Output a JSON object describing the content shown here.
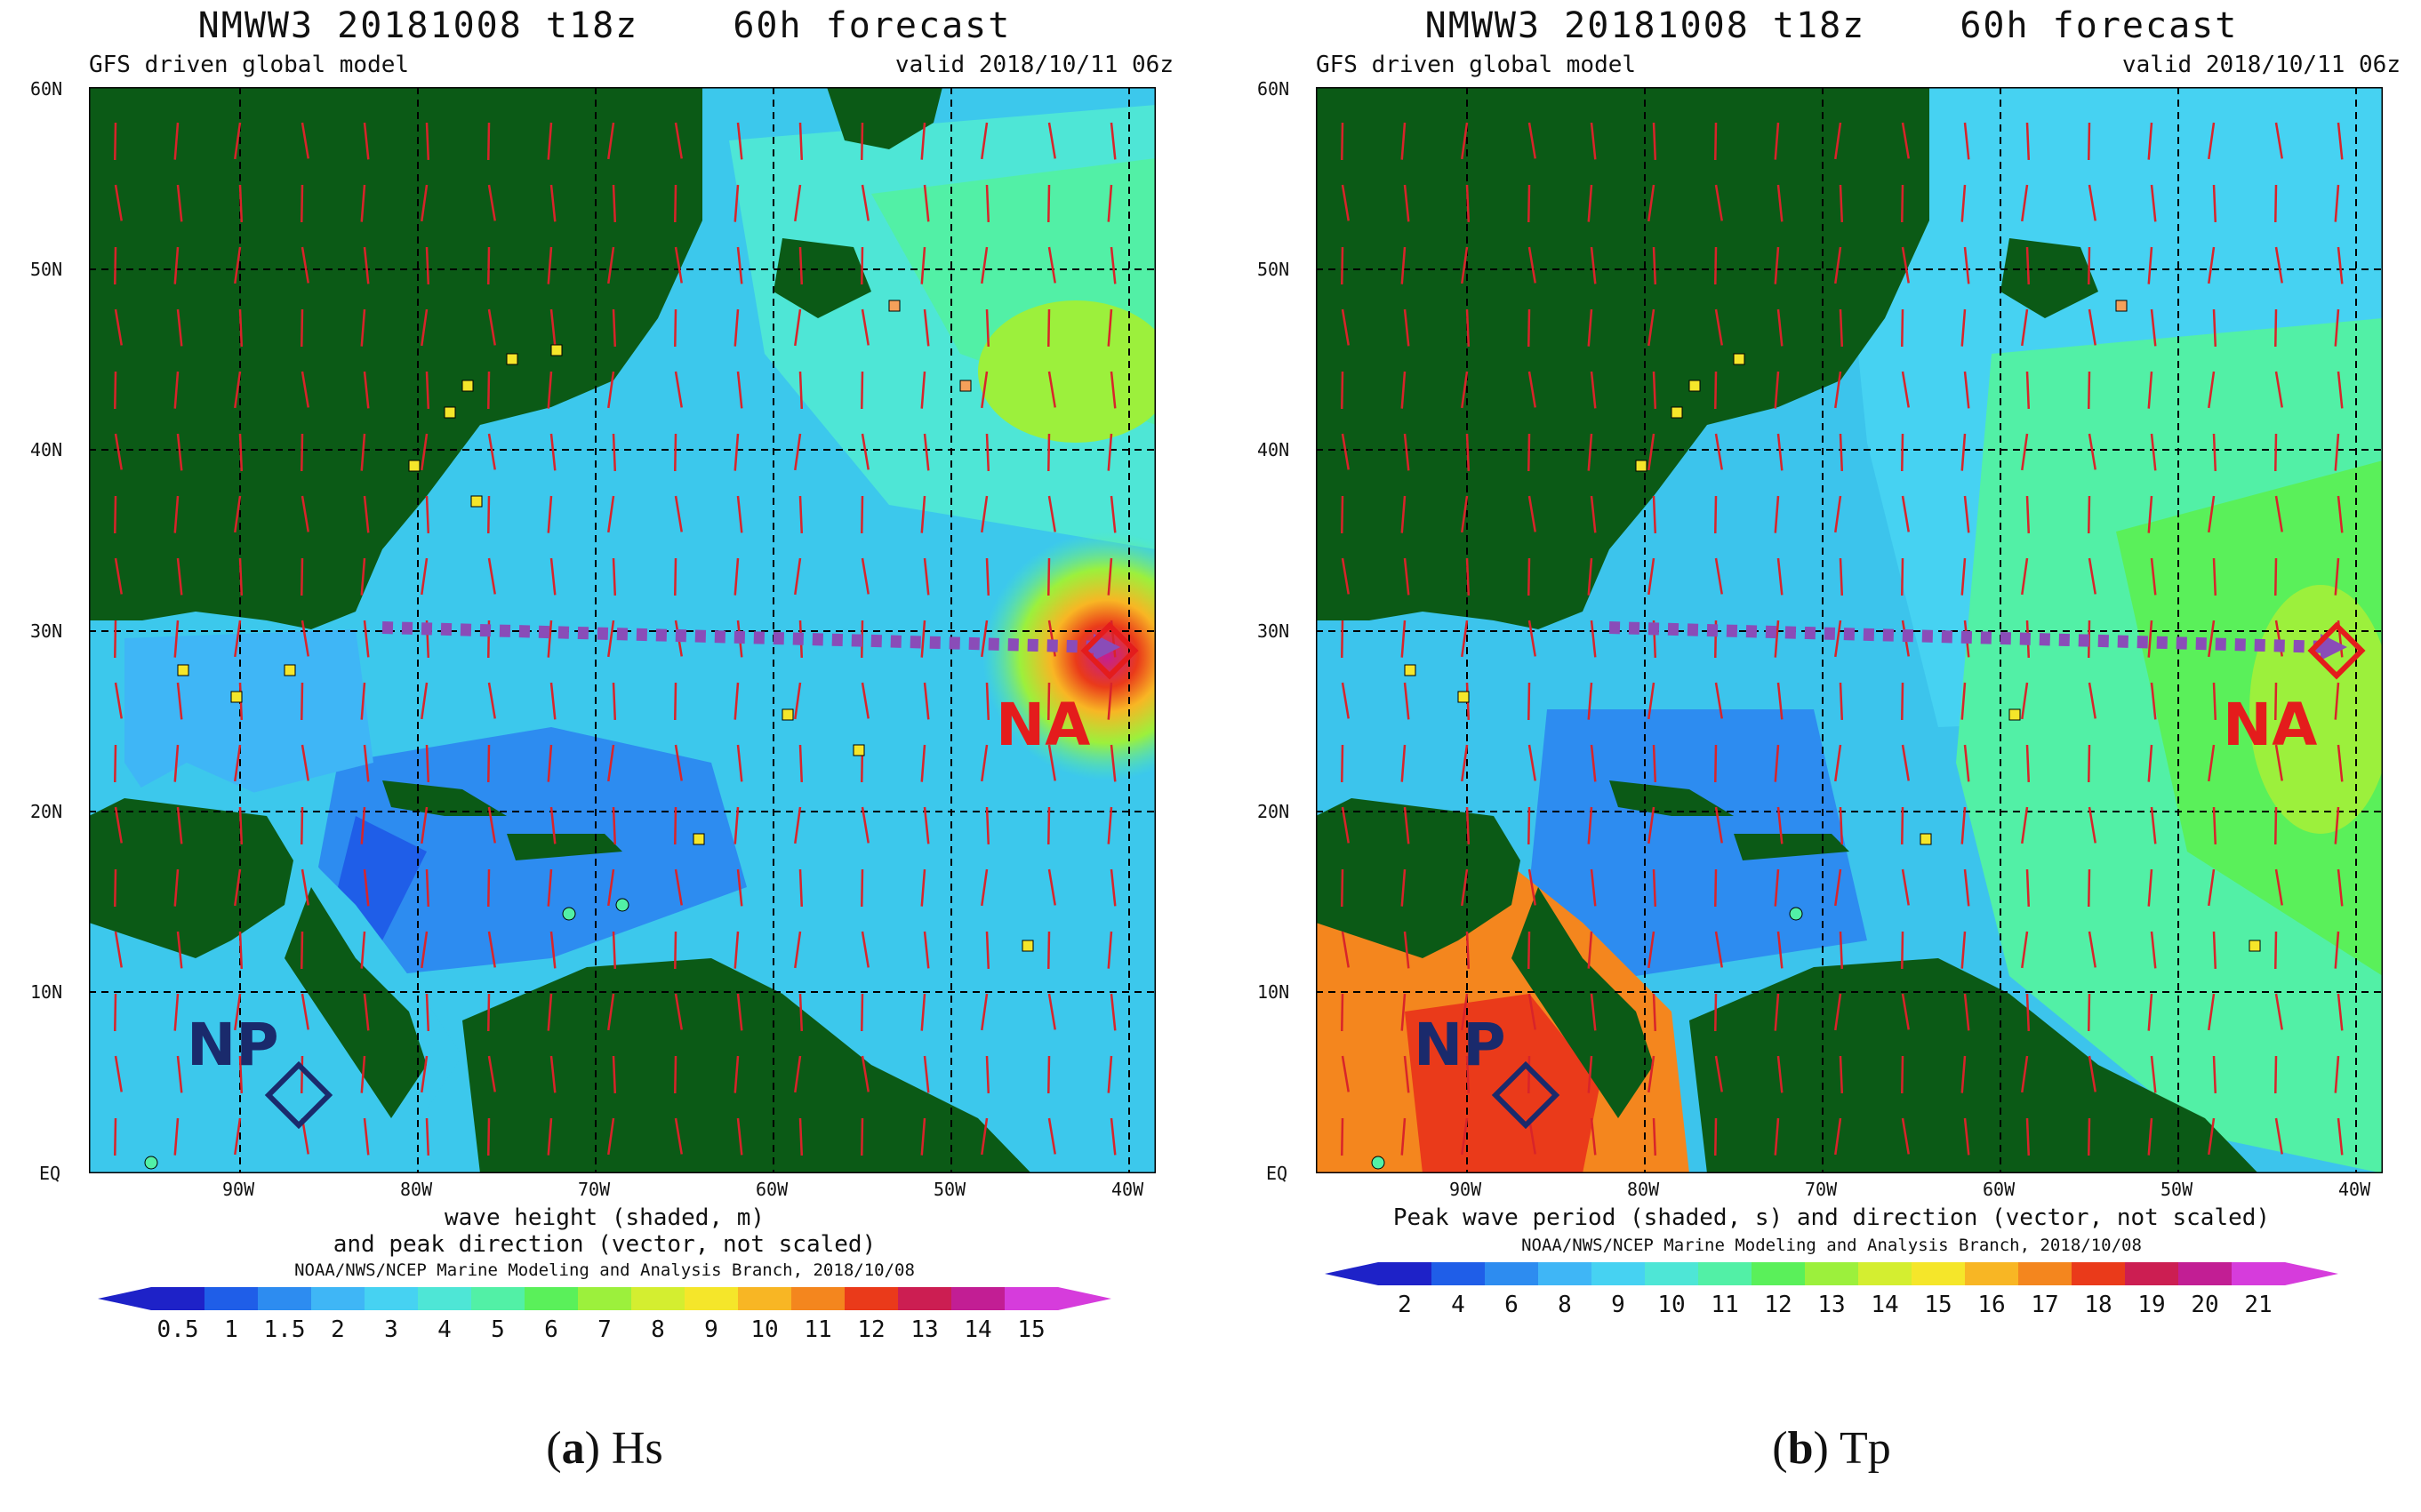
{
  "panels": [
    {
      "title_model": "NMWW3 20181008 t18z",
      "title_forecast": "60h forecast",
      "subtitle_left": "GFS driven global model",
      "subtitle_right": "valid 2018/10/11 06z",
      "caption_line1": "wave height (shaded, m)",
      "caption_line2": "and peak direction (vector, not scaled)",
      "agency": "NOAA/NWS/NCEP Marine Modeling and Analysis Branch, 2018/10/08",
      "colorbar_labels": [
        "0.5",
        "1",
        "1.5",
        "2",
        "3",
        "4",
        "5",
        "6",
        "7",
        "8",
        "9",
        "10",
        "11",
        "12",
        "13",
        "14",
        "15"
      ],
      "colorbar_colors": [
        "#1e22c8",
        "#1f5ee8",
        "#2d8cf0",
        "#3fb6f6",
        "#46d2f2",
        "#4ee6d6",
        "#52f0a6",
        "#5af05a",
        "#9cf03c",
        "#d4ee30",
        "#f5e62a",
        "#f8b624",
        "#f4861e",
        "#ea3a1a",
        "#cc1e52",
        "#c21e94",
        "#d63cdc"
      ],
      "figure_letter": "a",
      "figure_name": "Hs"
    },
    {
      "title_model": "NMWW3 20181008 t18z",
      "title_forecast": "60h forecast",
      "subtitle_left": "GFS driven global model",
      "subtitle_right": "valid 2018/10/11 06z",
      "caption_line1": "Peak wave period (shaded, s) and direction (vector, not scaled)",
      "caption_line2": "",
      "agency": "NOAA/NWS/NCEP Marine Modeling and Analysis Branch, 2018/10/08",
      "colorbar_labels": [
        "2",
        "4",
        "6",
        "8",
        "9",
        "10",
        "11",
        "12",
        "13",
        "14",
        "15",
        "16",
        "17",
        "18",
        "19",
        "20",
        "21"
      ],
      "colorbar_colors": [
        "#1e22c8",
        "#1f5ee8",
        "#2d8cf0",
        "#3fb6f6",
        "#46d2f2",
        "#4ee6d6",
        "#52f0a6",
        "#5af05a",
        "#9cf03c",
        "#d4ee30",
        "#f5e62a",
        "#f8b624",
        "#f4861e",
        "#ea3a1a",
        "#cc1e52",
        "#c21e94",
        "#d63cdc"
      ],
      "figure_letter": "b",
      "figure_name": "Tp"
    }
  ],
  "map": {
    "lat_labels": [
      "60N",
      "50N",
      "40N",
      "30N",
      "20N",
      "10N",
      "EQ"
    ],
    "lon_labels": [
      "90W",
      "80W",
      "70W",
      "60W",
      "50W",
      "40W"
    ],
    "marker_north_atlantic": "NA",
    "marker_north_pacific": "NP"
  },
  "colors": {
    "land": "#0b5a16",
    "ocean_a": "#3cc8ec",
    "ocean_b": "#3cc4ec",
    "marker_na": "#e41c1c",
    "marker_np": "#1a2a6c",
    "transect": "#8a4cb8",
    "arrow": "#d8242a"
  }
}
